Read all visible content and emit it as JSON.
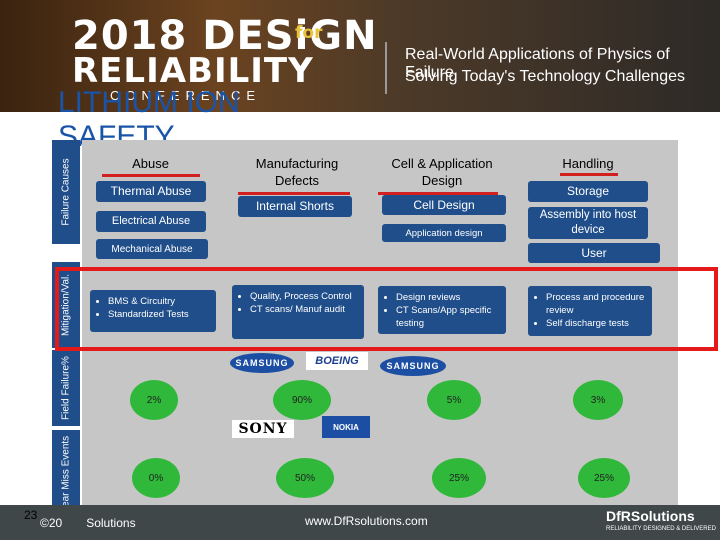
{
  "header": {
    "logo_year_design": "2018 DESiGN",
    "logo_for": "for",
    "logo_reliability": "RELIABILITY",
    "logo_conference": "CONFERENCE",
    "tagline_line1": "Real-World Applications of Physics of Failure",
    "tagline_line2": "Solving Today's Technology Challenges"
  },
  "slide": {
    "title": "LITHIUM ION SAFETY"
  },
  "row_labels": [
    "Failure Causes",
    "Mitigation/Val.",
    "Field Failure%",
    "Near Miss Events"
  ],
  "columns": [
    {
      "header": "Abuse",
      "causes": [
        "Thermal Abuse",
        "Electrical Abuse",
        "Mechanical Abuse"
      ],
      "mitigation": [
        "BMS & Circuitry",
        "Standardized Tests"
      ],
      "field_failure": "2%",
      "near_miss": "0%"
    },
    {
      "header": "Manufacturing Defects",
      "causes": [
        "Internal Shorts"
      ],
      "mitigation": [
        "Quality, Process Control",
        "CT scans/ Manuf audit"
      ],
      "field_failure": "90%",
      "near_miss": "50%"
    },
    {
      "header": "Cell & Application Design",
      "causes": [
        "Cell Design",
        "Application design"
      ],
      "mitigation": [
        "Design reviews",
        "CT Scans/App specific testing"
      ],
      "field_failure": "5%",
      "near_miss": "25%"
    },
    {
      "header": "Handling",
      "causes": [
        "Storage",
        "Assembly into host device",
        "User"
      ],
      "mitigation": [
        "Process and procedure review",
        "Self discharge tests"
      ],
      "field_failure": "3%",
      "near_miss": "25%"
    }
  ],
  "logos": {
    "samsung": "SAMSUNG",
    "boeing": "BOEING",
    "sony": "SONY",
    "nokia": "NOKIA"
  },
  "footer": {
    "slide_number": "23",
    "copyright": "©20",
    "copyright_tail": "Solutions",
    "website": "www.DfRsolutions.com",
    "company": "DfRSolutions",
    "company_tagline": "RELIABILITY DESIGNED & DELIVERED"
  },
  "colors": {
    "accent_blue": "#1f4e8a",
    "highlight_red": "#e41a1a",
    "green": "#2fb83a"
  }
}
